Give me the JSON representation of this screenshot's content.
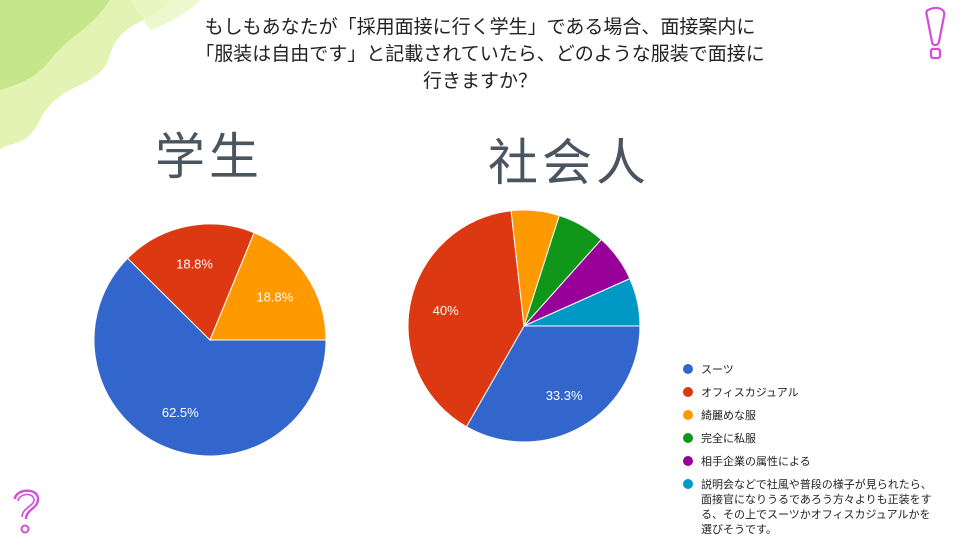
{
  "question": {
    "lines": [
      "もしもあなたが「採用面接に行く学生」である場合、面接案内に",
      "「服装は自由です」と記載されていたら、どのような服装で面接に",
      "行きますか？"
    ]
  },
  "colors": {
    "blue": "#3366cc",
    "red": "#dc3912",
    "orange": "#ff9900",
    "green": "#109618",
    "purple": "#990099",
    "teal": "#0099c6"
  },
  "chart_data": [
    {
      "type": "pie",
      "title": "学生",
      "categories": [
        "スーツ",
        "オフィスカジュアル",
        "綺麗めな服"
      ],
      "values": [
        62.5,
        18.8,
        18.8
      ],
      "labels": [
        "62.5%",
        "18.8%",
        "18.8%"
      ],
      "colors": [
        "#3366cc",
        "#dc3912",
        "#ff9900"
      ]
    },
    {
      "type": "pie",
      "title": "社会人",
      "categories": [
        "スーツ",
        "オフィスカジュアル",
        "綺麗めな服",
        "完全に私服",
        "相手企業の属性による",
        "説明会などで社風や普段の様子が見られたら、面接官になりうるであろう方々よりも正装をする、その上でスーツかオフィスカジュアルかを選びそうです。"
      ],
      "values": [
        33.3,
        40,
        6.7,
        6.7,
        6.7,
        6.7
      ],
      "labels": [
        "33.3%",
        "40%",
        "",
        "",
        "",
        ""
      ],
      "colors": [
        "#3366cc",
        "#dc3912",
        "#ff9900",
        "#109618",
        "#990099",
        "#0099c6"
      ],
      "legend_position": "right"
    }
  ],
  "legend": {
    "items": [
      {
        "label": "スーツ",
        "color": "#3366cc"
      },
      {
        "label": "オフィスカジュアル",
        "color": "#dc3912"
      },
      {
        "label": "綺麗めな服",
        "color": "#ff9900"
      },
      {
        "label": "完全に私服",
        "color": "#109618"
      },
      {
        "label": "相手企業の属性による",
        "color": "#990099"
      },
      {
        "label": "説明会などで社風や普段の様子が見られたら、面接官になりうるであろう方々よりも正装をする、その上でスーツかオフィスカジュアルかを選びそうです。",
        "color": "#0099c6"
      }
    ]
  }
}
